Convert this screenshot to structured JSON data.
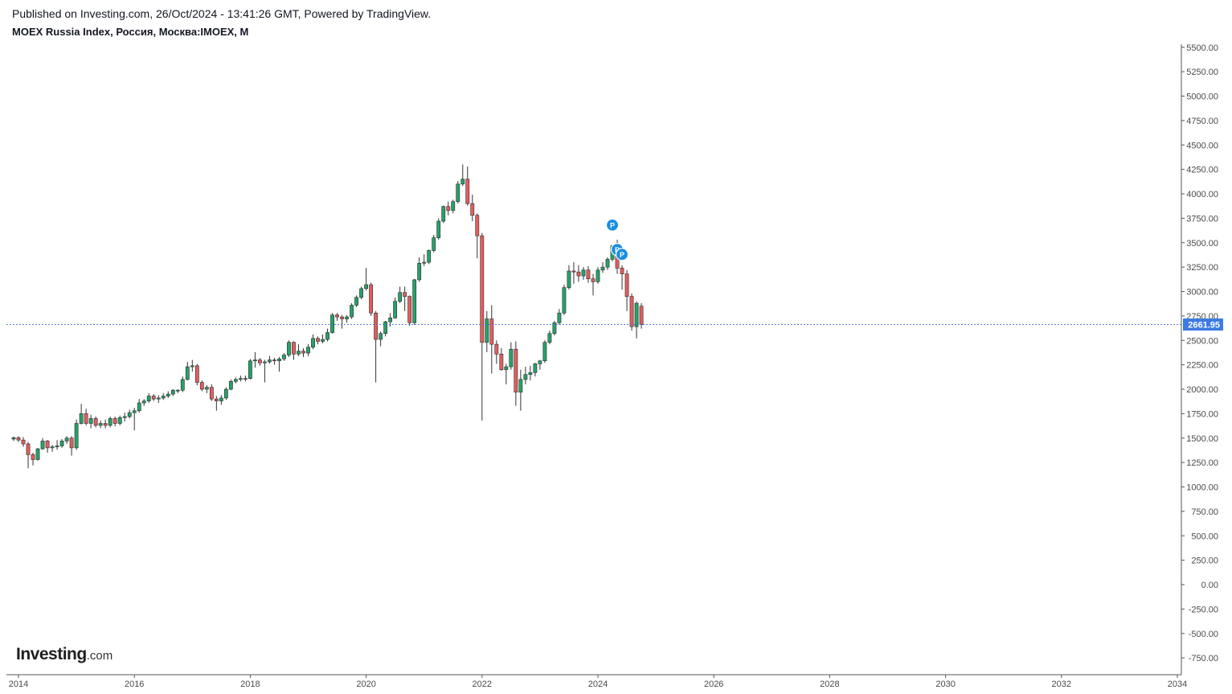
{
  "header": {
    "published": "Published on Investing.com, 26/Oct/2024 - 13:41:26 GMT, Powered by TradingView.",
    "symbol": "MOEX Russia Index, Россия, Москва:IMOEX, M"
  },
  "logo": {
    "main": "Investing",
    "suffix": ".com"
  },
  "colors": {
    "up": "#26a269",
    "down": "#e35d5d",
    "wick": "#333333",
    "price_line": "#3d6fd1",
    "price_label_bg": "#3d7be0",
    "marker": "#1a8ee0"
  },
  "chart_data": {
    "type": "candlestick",
    "interval": "monthly",
    "title": "MOEX Russia Index, Россия, Москва:IMOEX, M",
    "ylim": [
      -850,
      5550
    ],
    "y_ticks": [
      "5500.00",
      "5250.00",
      "5000.00",
      "4750.00",
      "4500.00",
      "4250.00",
      "4000.00",
      "3750.00",
      "3500.00",
      "3250.00",
      "3000.00",
      "2750.00",
      "2500.00",
      "2250.00",
      "2000.00",
      "1750.00",
      "1500.00",
      "1250.00",
      "1000.00",
      "750.00",
      "500.00",
      "250.00",
      "0.00",
      "-250.00",
      "-500.00",
      "-750.00"
    ],
    "x_ticks": [
      "2014",
      "2016",
      "2018",
      "2020",
      "2022",
      "2024",
      "2026",
      "2028",
      "2030",
      "2032",
      "2034"
    ],
    "x_range": [
      "2013-11",
      "2034-06"
    ],
    "grid": false,
    "last_price": "2661.95",
    "last_price_value": 2661.95,
    "markers": [
      {
        "date": "2024-04",
        "label": "P",
        "value": 3680
      },
      {
        "date": "2024-05",
        "label": "P",
        "value": 3430
      },
      {
        "date": "2024-06",
        "label": "P",
        "value": 3380
      }
    ],
    "candles": [
      {
        "date": "2013-12",
        "open": 1490,
        "high": 1515,
        "low": 1470,
        "close": 1504
      },
      {
        "date": "2014-01",
        "open": 1504,
        "high": 1520,
        "low": 1460,
        "close": 1480
      },
      {
        "date": "2014-02",
        "open": 1480,
        "high": 1510,
        "low": 1410,
        "close": 1440
      },
      {
        "date": "2014-03",
        "open": 1440,
        "high": 1460,
        "low": 1190,
        "close": 1330
      },
      {
        "date": "2014-04",
        "open": 1330,
        "high": 1350,
        "low": 1220,
        "close": 1280
      },
      {
        "date": "2014-05",
        "open": 1280,
        "high": 1400,
        "low": 1270,
        "close": 1390
      },
      {
        "date": "2014-06",
        "open": 1390,
        "high": 1500,
        "low": 1380,
        "close": 1470
      },
      {
        "date": "2014-07",
        "open": 1470,
        "high": 1480,
        "low": 1350,
        "close": 1400
      },
      {
        "date": "2014-08",
        "open": 1400,
        "high": 1430,
        "low": 1360,
        "close": 1410
      },
      {
        "date": "2014-09",
        "open": 1410,
        "high": 1480,
        "low": 1380,
        "close": 1420
      },
      {
        "date": "2014-10",
        "open": 1420,
        "high": 1490,
        "low": 1400,
        "close": 1470
      },
      {
        "date": "2014-11",
        "open": 1470,
        "high": 1520,
        "low": 1440,
        "close": 1500
      },
      {
        "date": "2014-12",
        "open": 1500,
        "high": 1520,
        "low": 1320,
        "close": 1400
      },
      {
        "date": "2015-01",
        "open": 1400,
        "high": 1690,
        "low": 1380,
        "close": 1650
      },
      {
        "date": "2015-02",
        "open": 1650,
        "high": 1850,
        "low": 1640,
        "close": 1750
      },
      {
        "date": "2015-03",
        "open": 1750,
        "high": 1800,
        "low": 1630,
        "close": 1650
      },
      {
        "date": "2015-04",
        "open": 1650,
        "high": 1740,
        "low": 1600,
        "close": 1700
      },
      {
        "date": "2015-05",
        "open": 1700,
        "high": 1720,
        "low": 1610,
        "close": 1630
      },
      {
        "date": "2015-06",
        "open": 1630,
        "high": 1680,
        "low": 1600,
        "close": 1650
      },
      {
        "date": "2015-07",
        "open": 1650,
        "high": 1690,
        "low": 1600,
        "close": 1630
      },
      {
        "date": "2015-08",
        "open": 1630,
        "high": 1720,
        "low": 1610,
        "close": 1700
      },
      {
        "date": "2015-09",
        "open": 1700,
        "high": 1720,
        "low": 1620,
        "close": 1650
      },
      {
        "date": "2015-10",
        "open": 1650,
        "high": 1730,
        "low": 1630,
        "close": 1710
      },
      {
        "date": "2015-11",
        "open": 1710,
        "high": 1760,
        "low": 1670,
        "close": 1720
      },
      {
        "date": "2015-12",
        "open": 1720,
        "high": 1790,
        "low": 1700,
        "close": 1760
      },
      {
        "date": "2016-01",
        "open": 1760,
        "high": 1810,
        "low": 1580,
        "close": 1780
      },
      {
        "date": "2016-02",
        "open": 1780,
        "high": 1900,
        "low": 1760,
        "close": 1860
      },
      {
        "date": "2016-03",
        "open": 1860,
        "high": 1900,
        "low": 1830,
        "close": 1880
      },
      {
        "date": "2016-04",
        "open": 1880,
        "high": 1960,
        "low": 1860,
        "close": 1930
      },
      {
        "date": "2016-05",
        "open": 1930,
        "high": 1950,
        "low": 1880,
        "close": 1900
      },
      {
        "date": "2016-06",
        "open": 1900,
        "high": 1940,
        "low": 1860,
        "close": 1910
      },
      {
        "date": "2016-07",
        "open": 1910,
        "high": 1960,
        "low": 1890,
        "close": 1930
      },
      {
        "date": "2016-08",
        "open": 1930,
        "high": 1980,
        "low": 1910,
        "close": 1950
      },
      {
        "date": "2016-09",
        "open": 1950,
        "high": 2000,
        "low": 1930,
        "close": 1990
      },
      {
        "date": "2016-10",
        "open": 1990,
        "high": 2000,
        "low": 1960,
        "close": 1990
      },
      {
        "date": "2016-11",
        "open": 1990,
        "high": 2130,
        "low": 1970,
        "close": 2100
      },
      {
        "date": "2016-12",
        "open": 2100,
        "high": 2280,
        "low": 2090,
        "close": 2230
      },
      {
        "date": "2017-01",
        "open": 2230,
        "high": 2300,
        "low": 2180,
        "close": 2240
      },
      {
        "date": "2017-02",
        "open": 2240,
        "high": 2260,
        "low": 2040,
        "close": 2070
      },
      {
        "date": "2017-03",
        "open": 2070,
        "high": 2090,
        "low": 1980,
        "close": 2000
      },
      {
        "date": "2017-04",
        "open": 2000,
        "high": 2040,
        "low": 1960,
        "close": 2020
      },
      {
        "date": "2017-05",
        "open": 2020,
        "high": 2050,
        "low": 1880,
        "close": 1900
      },
      {
        "date": "2017-06",
        "open": 1900,
        "high": 1930,
        "low": 1780,
        "close": 1880
      },
      {
        "date": "2017-07",
        "open": 1880,
        "high": 1940,
        "low": 1840,
        "close": 1910
      },
      {
        "date": "2017-08",
        "open": 1910,
        "high": 2020,
        "low": 1890,
        "close": 2000
      },
      {
        "date": "2017-09",
        "open": 2000,
        "high": 2100,
        "low": 1990,
        "close": 2080
      },
      {
        "date": "2017-10",
        "open": 2080,
        "high": 2120,
        "low": 2060,
        "close": 2100
      },
      {
        "date": "2017-11",
        "open": 2100,
        "high": 2140,
        "low": 2080,
        "close": 2110
      },
      {
        "date": "2017-12",
        "open": 2110,
        "high": 2140,
        "low": 2080,
        "close": 2110
      },
      {
        "date": "2018-01",
        "open": 2110,
        "high": 2310,
        "low": 2100,
        "close": 2290
      },
      {
        "date": "2018-02",
        "open": 2290,
        "high": 2380,
        "low": 2220,
        "close": 2300
      },
      {
        "date": "2018-03",
        "open": 2300,
        "high": 2320,
        "low": 2240,
        "close": 2270
      },
      {
        "date": "2018-04",
        "open": 2270,
        "high": 2300,
        "low": 2070,
        "close": 2280
      },
      {
        "date": "2018-05",
        "open": 2280,
        "high": 2340,
        "low": 2260,
        "close": 2300
      },
      {
        "date": "2018-06",
        "open": 2300,
        "high": 2320,
        "low": 2250,
        "close": 2290
      },
      {
        "date": "2018-07",
        "open": 2290,
        "high": 2330,
        "low": 2180,
        "close": 2310
      },
      {
        "date": "2018-08",
        "open": 2310,
        "high": 2370,
        "low": 2290,
        "close": 2350
      },
      {
        "date": "2018-09",
        "open": 2350,
        "high": 2500,
        "low": 2330,
        "close": 2480
      },
      {
        "date": "2018-10",
        "open": 2480,
        "high": 2490,
        "low": 2300,
        "close": 2360
      },
      {
        "date": "2018-11",
        "open": 2360,
        "high": 2460,
        "low": 2340,
        "close": 2390
      },
      {
        "date": "2018-12",
        "open": 2390,
        "high": 2420,
        "low": 2330,
        "close": 2370
      },
      {
        "date": "2019-01",
        "open": 2370,
        "high": 2460,
        "low": 2340,
        "close": 2430
      },
      {
        "date": "2019-02",
        "open": 2430,
        "high": 2560,
        "low": 2410,
        "close": 2520
      },
      {
        "date": "2019-03",
        "open": 2520,
        "high": 2540,
        "low": 2460,
        "close": 2490
      },
      {
        "date": "2019-04",
        "open": 2490,
        "high": 2560,
        "low": 2470,
        "close": 2510
      },
      {
        "date": "2019-05",
        "open": 2510,
        "high": 2620,
        "low": 2490,
        "close": 2580
      },
      {
        "date": "2019-06",
        "open": 2580,
        "high": 2780,
        "low": 2570,
        "close": 2760
      },
      {
        "date": "2019-07",
        "open": 2760,
        "high": 2780,
        "low": 2700,
        "close": 2740
      },
      {
        "date": "2019-08",
        "open": 2740,
        "high": 2760,
        "low": 2620,
        "close": 2720
      },
      {
        "date": "2019-09",
        "open": 2720,
        "high": 2760,
        "low": 2680,
        "close": 2740
      },
      {
        "date": "2019-10",
        "open": 2740,
        "high": 2880,
        "low": 2720,
        "close": 2860
      },
      {
        "date": "2019-11",
        "open": 2860,
        "high": 2960,
        "low": 2840,
        "close": 2940
      },
      {
        "date": "2019-12",
        "open": 2940,
        "high": 3050,
        "low": 2920,
        "close": 3030
      },
      {
        "date": "2020-01",
        "open": 3030,
        "high": 3240,
        "low": 3010,
        "close": 3070
      },
      {
        "date": "2020-02",
        "open": 3070,
        "high": 3090,
        "low": 2750,
        "close": 2780
      },
      {
        "date": "2020-03",
        "open": 2780,
        "high": 2800,
        "low": 2070,
        "close": 2510
      },
      {
        "date": "2020-04",
        "open": 2510,
        "high": 2590,
        "low": 2440,
        "close": 2570
      },
      {
        "date": "2020-05",
        "open": 2570,
        "high": 2700,
        "low": 2540,
        "close": 2690
      },
      {
        "date": "2020-06",
        "open": 2690,
        "high": 2780,
        "low": 2640,
        "close": 2730
      },
      {
        "date": "2020-07",
        "open": 2730,
        "high": 2940,
        "low": 2720,
        "close": 2900
      },
      {
        "date": "2020-08",
        "open": 2900,
        "high": 3050,
        "low": 2880,
        "close": 2990
      },
      {
        "date": "2020-09",
        "open": 2990,
        "high": 3050,
        "low": 2800,
        "close": 2950
      },
      {
        "date": "2020-10",
        "open": 2950,
        "high": 2960,
        "low": 2650,
        "close": 2680
      },
      {
        "date": "2020-11",
        "open": 2680,
        "high": 3130,
        "low": 2660,
        "close": 3120
      },
      {
        "date": "2020-12",
        "open": 3120,
        "high": 3350,
        "low": 3100,
        "close": 3290
      },
      {
        "date": "2021-01",
        "open": 3290,
        "high": 3380,
        "low": 3260,
        "close": 3300
      },
      {
        "date": "2021-02",
        "open": 3300,
        "high": 3430,
        "low": 3280,
        "close": 3420
      },
      {
        "date": "2021-03",
        "open": 3420,
        "high": 3580,
        "low": 3400,
        "close": 3550
      },
      {
        "date": "2021-04",
        "open": 3550,
        "high": 3750,
        "low": 3530,
        "close": 3720
      },
      {
        "date": "2021-05",
        "open": 3720,
        "high": 3880,
        "low": 3700,
        "close": 3870
      },
      {
        "date": "2021-06",
        "open": 3870,
        "high": 3920,
        "low": 3780,
        "close": 3830
      },
      {
        "date": "2021-07",
        "open": 3830,
        "high": 3940,
        "low": 3800,
        "close": 3920
      },
      {
        "date": "2021-08",
        "open": 3920,
        "high": 4130,
        "low": 3900,
        "close": 4100
      },
      {
        "date": "2021-09",
        "open": 4100,
        "high": 4300,
        "low": 4080,
        "close": 4150
      },
      {
        "date": "2021-10",
        "open": 4150,
        "high": 4280,
        "low": 3880,
        "close": 3900
      },
      {
        "date": "2021-11",
        "open": 3900,
        "high": 3990,
        "low": 3720,
        "close": 3780
      },
      {
        "date": "2021-12",
        "open": 3780,
        "high": 3800,
        "low": 3340,
        "close": 3570
      },
      {
        "date": "2022-01",
        "open": 3570,
        "high": 3600,
        "low": 1680,
        "close": 2480
      },
      {
        "date": "2022-02",
        "open": 2480,
        "high": 2800,
        "low": 2380,
        "close": 2720
      },
      {
        "date": "2022-03",
        "open": 2720,
        "high": 2860,
        "low": 2160,
        "close": 2460
      },
      {
        "date": "2022-04",
        "open": 2460,
        "high": 2500,
        "low": 2260,
        "close": 2360
      },
      {
        "date": "2022-05",
        "open": 2360,
        "high": 2420,
        "low": 2190,
        "close": 2200
      },
      {
        "date": "2022-06",
        "open": 2200,
        "high": 2260,
        "low": 2050,
        "close": 2230
      },
      {
        "date": "2022-07",
        "open": 2230,
        "high": 2480,
        "low": 2200,
        "close": 2410
      },
      {
        "date": "2022-08",
        "open": 2410,
        "high": 2490,
        "low": 1830,
        "close": 1970
      },
      {
        "date": "2022-09",
        "open": 1970,
        "high": 2200,
        "low": 1780,
        "close": 2100
      },
      {
        "date": "2022-10",
        "open": 2100,
        "high": 2230,
        "low": 2050,
        "close": 2150
      },
      {
        "date": "2022-11",
        "open": 2150,
        "high": 2240,
        "low": 2090,
        "close": 2170
      },
      {
        "date": "2022-12",
        "open": 2170,
        "high": 2270,
        "low": 2130,
        "close": 2260
      },
      {
        "date": "2023-01",
        "open": 2260,
        "high": 2300,
        "low": 2200,
        "close": 2290
      },
      {
        "date": "2023-02",
        "open": 2290,
        "high": 2500,
        "low": 2270,
        "close": 2480
      },
      {
        "date": "2023-03",
        "open": 2480,
        "high": 2600,
        "low": 2460,
        "close": 2570
      },
      {
        "date": "2023-04",
        "open": 2570,
        "high": 2700,
        "low": 2550,
        "close": 2680
      },
      {
        "date": "2023-05",
        "open": 2680,
        "high": 2820,
        "low": 2660,
        "close": 2780
      },
      {
        "date": "2023-06",
        "open": 2780,
        "high": 3070,
        "low": 2760,
        "close": 3040
      },
      {
        "date": "2023-07",
        "open": 3040,
        "high": 3270,
        "low": 3020,
        "close": 3210
      },
      {
        "date": "2023-08",
        "open": 3210,
        "high": 3300,
        "low": 3080,
        "close": 3200
      },
      {
        "date": "2023-09",
        "open": 3200,
        "high": 3270,
        "low": 3100,
        "close": 3160
      },
      {
        "date": "2023-10",
        "open": 3160,
        "high": 3250,
        "low": 3120,
        "close": 3220
      },
      {
        "date": "2023-11",
        "open": 3220,
        "high": 3260,
        "low": 3090,
        "close": 3130
      },
      {
        "date": "2023-12",
        "open": 3130,
        "high": 3180,
        "low": 2960,
        "close": 3100
      },
      {
        "date": "2024-01",
        "open": 3100,
        "high": 3250,
        "low": 3080,
        "close": 3220
      },
      {
        "date": "2024-02",
        "open": 3220,
        "high": 3300,
        "low": 3190,
        "close": 3250
      },
      {
        "date": "2024-03",
        "open": 3250,
        "high": 3350,
        "low": 3220,
        "close": 3330
      },
      {
        "date": "2024-04",
        "open": 3330,
        "high": 3470,
        "low": 3310,
        "close": 3470
      },
      {
        "date": "2024-05",
        "open": 3470,
        "high": 3530,
        "low": 3180,
        "close": 3240
      },
      {
        "date": "2024-06",
        "open": 3240,
        "high": 3270,
        "low": 3020,
        "close": 3180
      },
      {
        "date": "2024-07",
        "open": 3180,
        "high": 3220,
        "low": 2800,
        "close": 2950
      },
      {
        "date": "2024-08",
        "open": 2950,
        "high": 2980,
        "low": 2600,
        "close": 2640
      },
      {
        "date": "2024-09",
        "open": 2640,
        "high": 2900,
        "low": 2520,
        "close": 2880
      },
      {
        "date": "2024-10",
        "open": 2850,
        "high": 2880,
        "low": 2620,
        "close": 2662
      }
    ]
  }
}
